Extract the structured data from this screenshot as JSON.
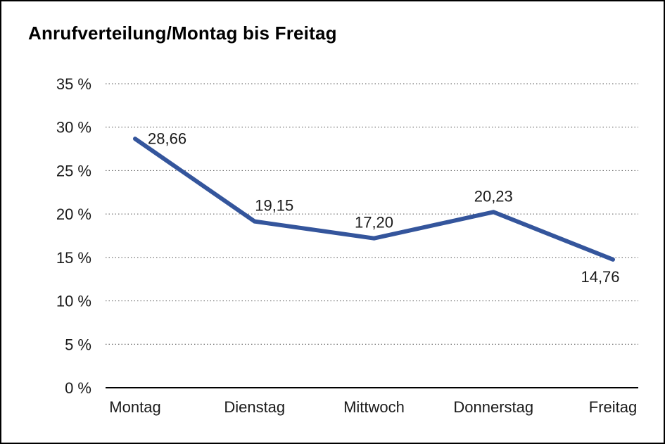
{
  "chart_data": {
    "type": "line",
    "title": "Anrufverteilung/Montag bis Freitag",
    "categories": [
      "Montag",
      "Dienstag",
      "Mittwoch",
      "Donnerstag",
      "Freitag"
    ],
    "values": [
      28.66,
      19.15,
      17.2,
      20.23,
      14.76
    ],
    "value_labels": [
      "28,66",
      "19,15",
      "17,20",
      "20,23",
      "14,76"
    ],
    "label_placements": [
      "right",
      "above-right",
      "above",
      "above",
      "below-left"
    ],
    "ylim": [
      0,
      35
    ],
    "ytick_step": 5,
    "ytick_labels": [
      "0 %",
      "5 %",
      "10 %",
      "15 %",
      "20 %",
      "25 %",
      "30 %",
      "35 %"
    ],
    "grid": true,
    "legend": false,
    "line_color": "#34559c",
    "grid_color": "#555555",
    "axis_color": "#000000",
    "text_color": "#1a1a1a"
  }
}
